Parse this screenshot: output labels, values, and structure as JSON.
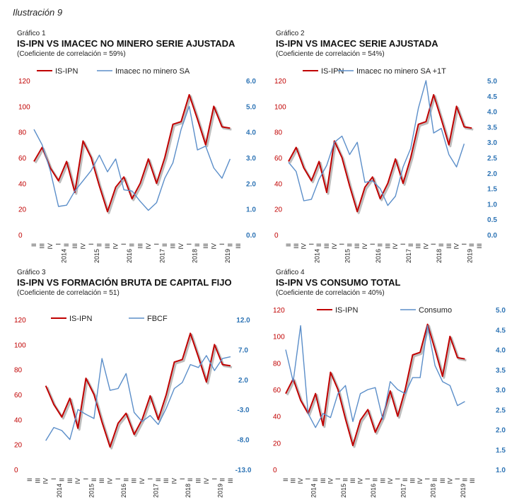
{
  "page": {
    "title": "Ilustración 9"
  },
  "colors": {
    "ipn": "#c00000",
    "ipn_shadow": "#bdbdbd",
    "second": "#5b8ec9",
    "left_axis": "#c00000",
    "right_axis": "#2e74b5"
  },
  "x_tick_labels": [
    "II",
    "III",
    "IV",
    "I",
    "II",
    "III",
    "IV",
    "I",
    "II",
    "III",
    "IV",
    "I",
    "II",
    "III",
    "IV",
    "I",
    "II",
    "III",
    "IV",
    "I",
    "II",
    "III",
    "IV",
    "I",
    "II",
    "III"
  ],
  "year_labels": [
    {
      "label": "2014",
      "index": 3
    },
    {
      "label": "2015",
      "index": 7
    },
    {
      "label": "2016",
      "index": 11
    },
    {
      "label": "2017",
      "index": 15
    },
    {
      "label": "2018",
      "index": 19
    },
    {
      "label": "2019",
      "index": 23
    }
  ],
  "chart_data": [
    {
      "id": "g1",
      "type": "line",
      "number": "Gráfico 1",
      "title": "IS-IPN VS IMACEC NO MINERO SERIE AJUSTADA",
      "subtitle": "(Coeficiente de correlación = 59%)",
      "left_axis": {
        "min": 0,
        "max": 120,
        "ticks": [
          "0",
          "20",
          "40",
          "60",
          "80",
          "100",
          "120"
        ]
      },
      "right_axis": {
        "min": 0,
        "max": 6,
        "ticks": [
          "0.0",
          "1.0",
          "2.0",
          "3.0",
          "4.0",
          "5.0",
          "6.0"
        ]
      },
      "series": [
        {
          "name": "IS-IPN",
          "axis": "left",
          "values": [
            57,
            68,
            52,
            42,
            57,
            33,
            73,
            60,
            38,
            18,
            37,
            45,
            28,
            40,
            59,
            40,
            60,
            86,
            88,
            109,
            90,
            70,
            100,
            84,
            83,
            null
          ]
        },
        {
          "name": "Imacec no minero SA",
          "axis": "right",
          "values": [
            4.1,
            3.5,
            2.5,
            1.1,
            1.15,
            1.7,
            2.1,
            2.5,
            3.1,
            2.45,
            2.95,
            1.75,
            1.7,
            1.3,
            0.95,
            1.25,
            2.2,
            2.8,
            4.1,
            5.0,
            3.3,
            3.45,
            2.6,
            2.2,
            2.95,
            null
          ]
        }
      ]
    },
    {
      "id": "g2",
      "type": "line",
      "number": "Gráfico 2",
      "title": "IS-IPN VS IMACEC SERIE AJUSTADA",
      "subtitle": "(Coeficiente de correlación = 54%)",
      "left_axis": {
        "min": 0,
        "max": 120,
        "ticks": [
          "0",
          "20",
          "40",
          "60",
          "80",
          "100",
          "120"
        ]
      },
      "right_axis": {
        "min": 0,
        "max": 5,
        "ticks": [
          "0.0",
          "0.5",
          "1.0",
          "1.5",
          "2.0",
          "2.5",
          "3.0",
          "3.5",
          "4.0",
          "4.5",
          "5.0"
        ]
      },
      "series": [
        {
          "name": "IS-IPN",
          "axis": "left",
          "values": [
            57,
            68,
            52,
            42,
            57,
            33,
            73,
            60,
            38,
            18,
            37,
            45,
            28,
            40,
            59,
            40,
            60,
            86,
            88,
            109,
            90,
            70,
            100,
            84,
            83,
            null
          ]
        },
        {
          "name": "Imacec no minero SA +1T",
          "axis": "right",
          "values": [
            2.35,
            2.05,
            1.1,
            1.15,
            1.8,
            2.25,
            3.0,
            3.2,
            2.6,
            3.0,
            1.7,
            1.75,
            1.5,
            0.95,
            1.25,
            2.2,
            2.8,
            4.1,
            5.0,
            3.3,
            3.45,
            2.6,
            2.2,
            2.95,
            null,
            null
          ]
        }
      ]
    },
    {
      "id": "g3",
      "type": "line",
      "number": "Gráfico 3",
      "title": "IS-IPN VS FORMACIÓN BRUTA DE CAPITAL FIJO",
      "subtitle": "(Coeficiente de correlación = 51)",
      "left_axis": {
        "min": 0,
        "max": 120,
        "ticks": [
          "0",
          "20",
          "40",
          "60",
          "80",
          "100",
          "120"
        ]
      },
      "right_axis": {
        "min": -13,
        "max": 12,
        "ticks": [
          "-13.0",
          "-8.0",
          "-3.0",
          "2.0",
          "7.0",
          "12.0"
        ]
      },
      "series": [
        {
          "name": "IS-IPN",
          "axis": "left",
          "values": [
            null,
            null,
            67,
            52,
            42,
            57,
            33,
            73,
            60,
            38,
            18,
            37,
            45,
            28,
            40,
            59,
            40,
            60,
            86,
            88,
            109,
            90,
            70,
            100,
            84,
            83
          ]
        },
        {
          "name": "FBCF",
          "axis": "right",
          "values": [
            null,
            null,
            -8.2,
            -6.0,
            -6.5,
            -8.0,
            -3.0,
            -3.8,
            -4.5,
            5.5,
            0.2,
            0.5,
            3.0,
            -3.5,
            -5.0,
            -4.0,
            -5.5,
            -2.8,
            0.5,
            1.5,
            4.5,
            4.0,
            6.0,
            3.5,
            5.5,
            5.8
          ]
        }
      ]
    },
    {
      "id": "g4",
      "type": "line",
      "number": "Gráfico 4",
      "title": "IS-IPN VS CONSUMO TOTAL",
      "subtitle": "(Coeficiente de correlación =  40%)",
      "left_axis": {
        "min": 0,
        "max": 120,
        "ticks": [
          "0",
          "20",
          "40",
          "60",
          "80",
          "100",
          "120"
        ]
      },
      "right_axis": {
        "min": 1.0,
        "max": 5.0,
        "ticks": [
          "1.0",
          "1.5",
          "2.0",
          "2.5",
          "3.0",
          "3.5",
          "4.0",
          "4.5",
          "5.0"
        ]
      },
      "series": [
        {
          "name": "IS-IPN",
          "axis": "left",
          "values": [
            57,
            68,
            52,
            42,
            57,
            33,
            73,
            60,
            38,
            18,
            37,
            45,
            28,
            40,
            59,
            40,
            60,
            86,
            88,
            109,
            90,
            70,
            100,
            84,
            83,
            null
          ]
        },
        {
          "name": "Consumo",
          "axis": "right",
          "values": [
            4.0,
            3.2,
            4.6,
            2.4,
            2.05,
            2.4,
            2.3,
            2.9,
            3.1,
            2.2,
            2.9,
            3.0,
            3.05,
            2.25,
            3.2,
            3.0,
            2.9,
            3.3,
            3.3,
            4.6,
            3.6,
            3.2,
            3.1,
            2.6,
            2.7,
            null
          ]
        }
      ]
    }
  ]
}
